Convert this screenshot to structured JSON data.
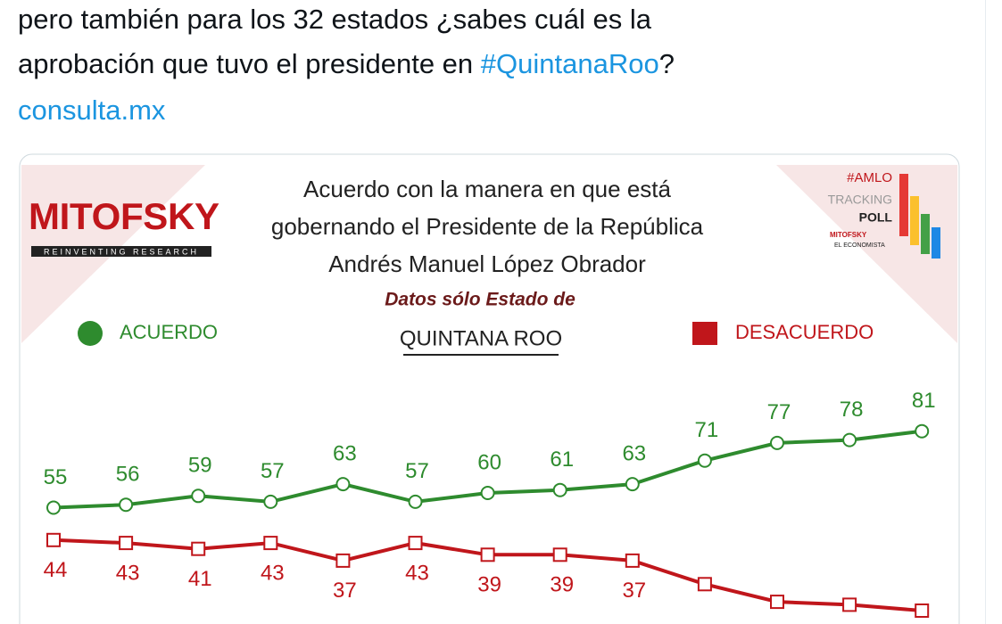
{
  "tweet": {
    "line1": "pero también para los 32 estados ¿sabes cuál es la",
    "line2": "aprobación que tuvo el presidente en ",
    "hashtag": "#QuintanaRoo",
    "line2_end": "?",
    "link": "consulta.mx"
  },
  "chart": {
    "type": "line",
    "logo": "MITOFSKY",
    "logo_tagline": "REINVENTING RESEARCH",
    "title_lines": [
      "Acuerdo con la manera en que está",
      "gobernando el Presidente de la República",
      "Andrés Manuel López Obrador"
    ],
    "subtitle": "Datos sólo Estado de",
    "state": "QUINTANA ROO",
    "badge": {
      "hashtag": "#AMLO",
      "tracking": "TRACKING",
      "poll": "POLL",
      "brand": "MITOFSKY",
      "partner": "EL ECONOMISTA"
    },
    "series": [
      {
        "name": "ACUERDO",
        "color": "#2e8b2e",
        "values": [
          55,
          56,
          59,
          57,
          63,
          57,
          60,
          61,
          63,
          71,
          77,
          78,
          81
        ]
      },
      {
        "name": "DESACUERDO",
        "color": "#c0161b",
        "values": [
          44,
          43,
          41,
          43,
          37,
          43,
          39,
          39,
          37,
          29,
          23,
          22,
          20
        ]
      }
    ]
  }
}
